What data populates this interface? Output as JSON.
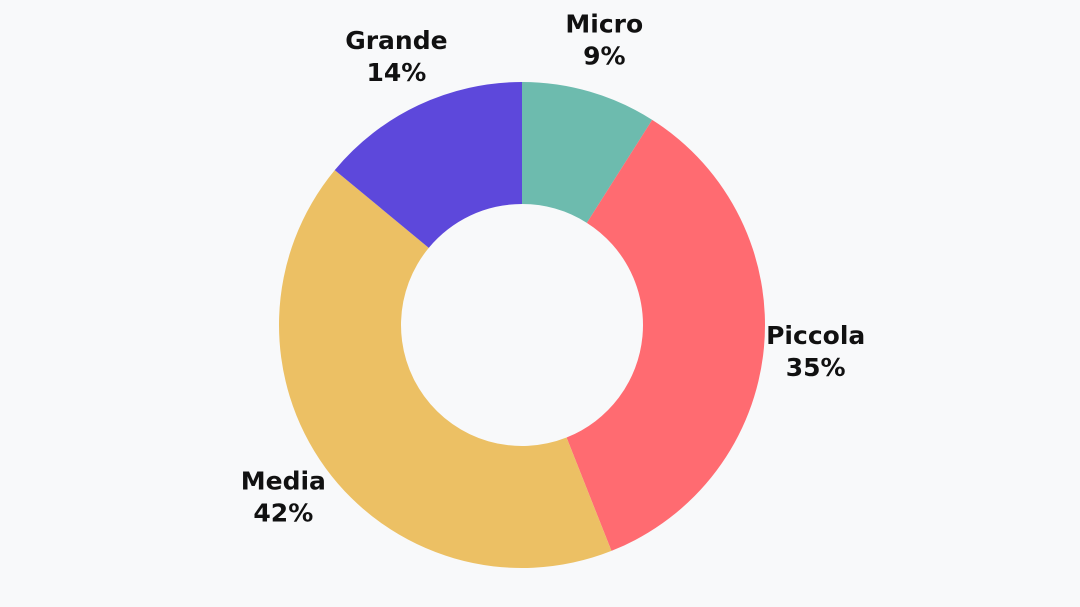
{
  "chart_data": {
    "type": "donut",
    "categories": [
      "Micro",
      "Piccola",
      "Media",
      "Grande"
    ],
    "values": [
      9,
      35,
      42,
      14
    ],
    "value_labels": [
      "9%",
      "35%",
      "42%",
      "14%"
    ],
    "colors": [
      "#6dbbae",
      "#ff6b71",
      "#ecc064",
      "#5d48db"
    ]
  }
}
